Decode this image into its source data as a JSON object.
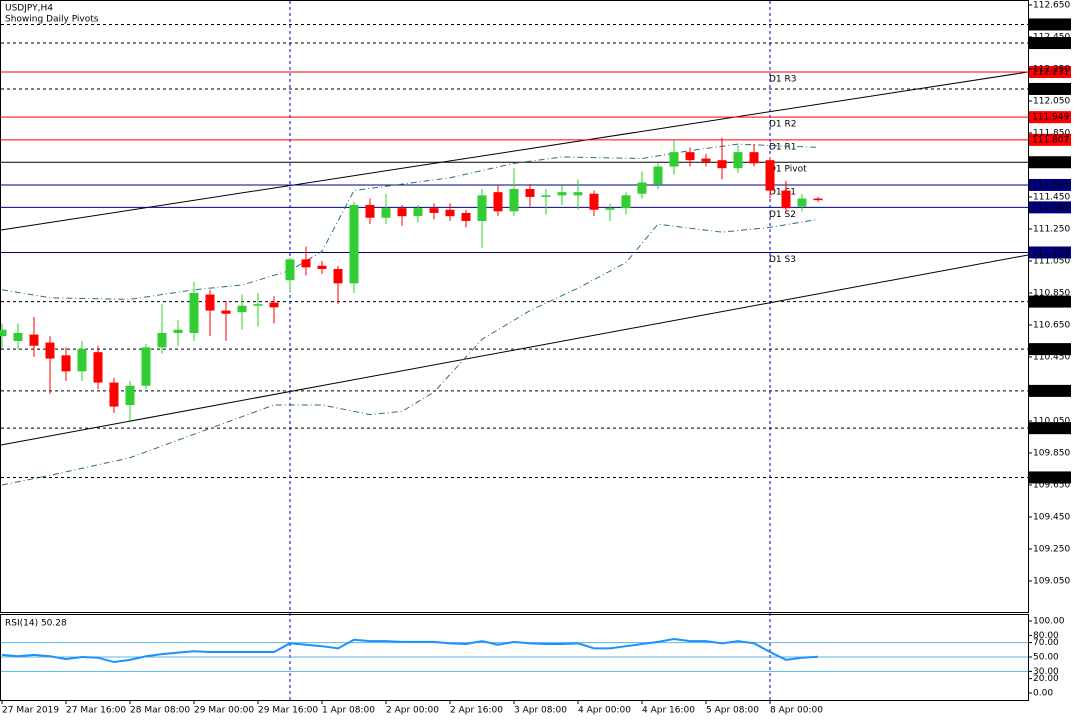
{
  "chart_data": {
    "type": "candlestick",
    "title": "USDJPY,H4",
    "subtitle": "Showing Daily Pivots",
    "bull_color": "#32cd32",
    "bear_color": "#ff0000",
    "xlim": [
      -0.125,
      64.125
    ],
    "ylim": [
      108.856,
      112.681
    ],
    "xticks": [
      {
        "value": 0,
        "label": "27 Mar 2019"
      },
      {
        "value": 4,
        "label": "27 Mar 16:00"
      },
      {
        "value": 8,
        "label": "28 Mar 08:00"
      },
      {
        "value": 12,
        "label": "29 Mar 00:00"
      },
      {
        "value": 16,
        "label": "29 Mar 16:00"
      },
      {
        "value": 20,
        "label": "1 Apr 08:00"
      },
      {
        "value": 24,
        "label": "2 Apr 00:00"
      },
      {
        "value": 28,
        "label": "2 Apr 16:00"
      },
      {
        "value": 32,
        "label": "3 Apr 08:00"
      },
      {
        "value": 36,
        "label": "4 Apr 00:00"
      },
      {
        "value": 40,
        "label": "4 Apr 16:00"
      },
      {
        "value": 44,
        "label": "5 Apr 08:00"
      },
      {
        "value": 48,
        "label": "8 Apr 00:00"
      }
    ],
    "yticks": [
      {
        "value": 112.65,
        "label": "112.650"
      },
      {
        "value": 112.45,
        "label": "112.450"
      },
      {
        "value": 112.25,
        "label": "112.250"
      },
      {
        "value": 112.05,
        "label": "112.050"
      },
      {
        "value": 111.85,
        "label": "111.850"
      },
      {
        "value": 111.65,
        "label": "111.650"
      },
      {
        "value": 111.45,
        "label": "111.450"
      },
      {
        "value": 111.25,
        "label": "111.250"
      },
      {
        "value": 111.05,
        "label": "111.050"
      },
      {
        "value": 110.85,
        "label": "110.850"
      },
      {
        "value": 110.65,
        "label": "110.650"
      },
      {
        "value": 110.45,
        "label": "110.450"
      },
      {
        "value": 110.25,
        "label": "110.250"
      },
      {
        "value": 110.05,
        "label": "110.050"
      },
      {
        "value": 109.85,
        "label": "109.850"
      },
      {
        "value": 109.65,
        "label": "109.650"
      },
      {
        "value": 109.45,
        "label": "109.450"
      },
      {
        "value": 109.25,
        "label": "109.250"
      },
      {
        "value": 109.05,
        "label": "109.050"
      }
    ],
    "open": [
      110.58,
      110.55,
      110.59,
      110.54,
      110.46,
      110.36,
      110.48,
      110.29,
      110.15,
      110.27,
      110.51,
      110.6,
      110.6,
      110.84,
      110.74,
      110.73,
      110.77,
      110.79,
      110.93,
      111.06,
      111.02,
      111.0,
      110.91,
      111.4,
      111.32,
      111.38,
      111.33,
      111.38,
      111.37,
      111.35,
      111.3,
      111.48,
      111.36,
      111.5,
      111.45,
      111.46,
      111.46,
      111.47,
      111.37,
      111.38,
      111.47,
      111.53,
      111.64,
      111.73,
      111.69,
      111.68,
      111.63,
      111.73,
      111.68,
      111.49,
      111.39,
      111.44
    ],
    "high": [
      110.66,
      110.66,
      110.7,
      110.58,
      110.51,
      110.55,
      110.52,
      110.32,
      110.3,
      110.53,
      110.78,
      110.68,
      110.92,
      110.87,
      110.8,
      110.84,
      110.85,
      110.83,
      111.07,
      111.14,
      111.05,
      111.02,
      111.42,
      111.44,
      111.47,
      111.4,
      111.4,
      111.41,
      111.41,
      111.37,
      111.5,
      111.52,
      111.63,
      111.53,
      111.5,
      111.52,
      111.56,
      111.49,
      111.41,
      111.48,
      111.61,
      111.66,
      111.81,
      111.76,
      111.72,
      111.82,
      111.77,
      111.78,
      111.7,
      111.55,
      111.47,
      111.45
    ],
    "low": [
      110.5,
      110.5,
      110.45,
      110.22,
      110.3,
      110.3,
      110.25,
      110.1,
      110.05,
      110.25,
      110.47,
      110.52,
      110.55,
      110.58,
      110.55,
      110.62,
      110.64,
      110.66,
      110.86,
      110.96,
      110.97,
      110.78,
      110.85,
      111.28,
      111.28,
      111.27,
      111.29,
      111.31,
      111.3,
      111.26,
      111.13,
      111.33,
      111.33,
      111.39,
      111.34,
      111.4,
      111.37,
      111.33,
      111.3,
      111.34,
      111.44,
      111.5,
      111.59,
      111.64,
      111.64,
      111.56,
      111.6,
      111.64,
      111.44,
      111.36,
      111.36,
      111.42
    ],
    "close": [
      110.62,
      110.6,
      110.52,
      110.44,
      110.36,
      110.5,
      110.29,
      110.14,
      110.27,
      110.51,
      110.6,
      110.62,
      110.85,
      110.74,
      110.72,
      110.77,
      110.78,
      110.76,
      111.06,
      111.01,
      111.0,
      110.91,
      111.4,
      111.32,
      111.38,
      111.33,
      111.38,
      111.35,
      111.33,
      111.3,
      111.46,
      111.36,
      111.5,
      111.45,
      111.46,
      111.48,
      111.48,
      111.37,
      111.38,
      111.46,
      111.54,
      111.64,
      111.73,
      111.68,
      111.67,
      111.63,
      111.73,
      111.66,
      111.49,
      111.38,
      111.44,
      111.43
    ],
    "band_color": "#2f6f6f",
    "upper_band": {
      "x": [
        0,
        3,
        8,
        12,
        15,
        18,
        20,
        22,
        25,
        28,
        32,
        35,
        40,
        43,
        46,
        51
      ],
      "values": [
        110.87,
        110.82,
        110.81,
        110.87,
        110.9,
        110.99,
        111.11,
        111.49,
        111.53,
        111.57,
        111.66,
        111.7,
        111.69,
        111.74,
        111.78,
        111.76
      ]
    },
    "lower_band": {
      "x": [
        0,
        3,
        8,
        11,
        14,
        17,
        20,
        23,
        25,
        27,
        30,
        33,
        36,
        39,
        41,
        45,
        48,
        51
      ],
      "values": [
        109.65,
        109.71,
        109.82,
        109.93,
        110.04,
        110.15,
        110.15,
        110.09,
        110.11,
        110.23,
        110.56,
        110.74,
        110.88,
        111.04,
        111.28,
        111.23,
        111.26,
        111.31
      ]
    },
    "levels": [
      {
        "value": 112.528,
        "color": "#000000"
      },
      {
        "value": 112.412,
        "color": "#000000"
      },
      {
        "value": 112.231,
        "name": "D1 R3",
        "color": "#ff0000"
      },
      {
        "value": 112.125,
        "color": "#000000"
      },
      {
        "value": 111.949,
        "name": "D1 R2",
        "color": "#ff0000"
      },
      {
        "value": 111.807,
        "name": "D1 R1",
        "color": "#ff0000"
      },
      {
        "value": 111.667,
        "name": "D1 Pivot",
        "color": "#000000"
      },
      {
        "value": 111.525,
        "name": "D1 S1",
        "color": "#000080"
      },
      {
        "value": 111.385,
        "name": "D1 S2",
        "color": "#000080"
      },
      {
        "value": 111.103,
        "name": "D1 S3",
        "color": "#000080"
      },
      {
        "value": 110.796,
        "color": "#000000"
      },
      {
        "value": 110.499,
        "color": "#000000"
      },
      {
        "value": 110.238,
        "color": "#000000"
      },
      {
        "value": 110.005,
        "color": "#000000"
      },
      {
        "value": 109.697,
        "color": "#000000"
      }
    ],
    "rsi": {
      "title": "RSI(14) 50.28",
      "color": "#1e90ff",
      "level_color": "#5fb4e0",
      "levels": [
        70,
        50,
        30
      ],
      "ylim": [
        -9.7,
        109.7
      ],
      "yticks": [
        {
          "value": 100,
          "label": "100.00"
        },
        {
          "value": 80,
          "label": "80.00"
        },
        {
          "value": 70,
          "label": "70.00"
        },
        {
          "value": 50,
          "label": "50.00"
        },
        {
          "value": 30,
          "label": "30.00"
        },
        {
          "value": 20,
          "label": "20.00"
        },
        {
          "value": 0,
          "label": "0.00"
        }
      ],
      "values": [
        53,
        51,
        53,
        51,
        47,
        50,
        49,
        43,
        46,
        51,
        54,
        56,
        58,
        57,
        57,
        57,
        57,
        57,
        69,
        67,
        65,
        62,
        74,
        72,
        72,
        71,
        71,
        71,
        69,
        68,
        72,
        67,
        71,
        69,
        68,
        68,
        69,
        62,
        62,
        65,
        68,
        71,
        75,
        72,
        72,
        69,
        72,
        69,
        57,
        46,
        49,
        50.28
      ]
    }
  }
}
